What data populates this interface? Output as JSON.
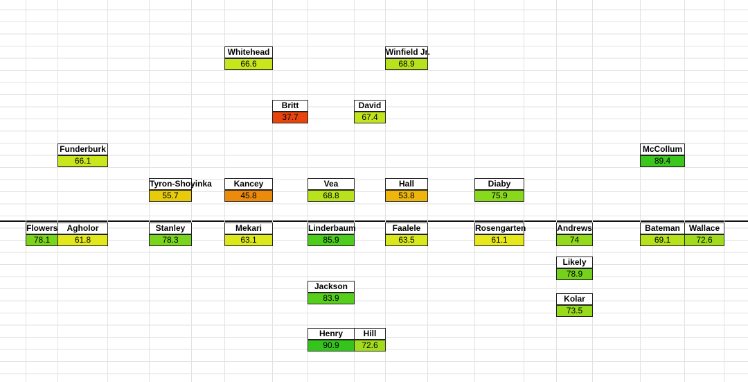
{
  "players": [
    {
      "name": "Whitehead",
      "rating": 66.6,
      "color": "#c8e61c"
    },
    {
      "name": "Winfield Jr.",
      "rating": 68.9,
      "color": "#b8e21c"
    },
    {
      "name": "Britt",
      "rating": 37.7,
      "color": "#e8440c"
    },
    {
      "name": "David",
      "rating": 67.4,
      "color": "#c2e41c"
    },
    {
      "name": "Funderburk",
      "rating": 66.1,
      "color": "#cae61c"
    },
    {
      "name": "McCollum",
      "rating": 89.4,
      "color": "#3cc71c"
    },
    {
      "name": "Tyron-Shoyinka",
      "rating": 55.7,
      "color": "#e8cc0c"
    },
    {
      "name": "Kancey",
      "rating": 45.8,
      "color": "#ec8a0c"
    },
    {
      "name": "Vea",
      "rating": 68.8,
      "color": "#b8e21c"
    },
    {
      "name": "Hall",
      "rating": 53.8,
      "color": "#eeb60c"
    },
    {
      "name": "Diaby",
      "rating": 75.9,
      "color": "#88d81c"
    },
    {
      "name": "Flowers",
      "rating": 78.1,
      "color": "#7ad41c"
    },
    {
      "name": "Agholor",
      "rating": 61.8,
      "color": "#e2e81c"
    },
    {
      "name": "Stanley",
      "rating": 78.3,
      "color": "#78d41c"
    },
    {
      "name": "Mekari",
      "rating": 63.1,
      "color": "#dae81c"
    },
    {
      "name": "Linderbaum",
      "rating": 85.9,
      "color": "#4ccc1c"
    },
    {
      "name": "Faalele",
      "rating": 63.5,
      "color": "#d8e81c"
    },
    {
      "name": "Rosengarten",
      "rating": 61.1,
      "color": "#e6e81c"
    },
    {
      "name": "Andrews",
      "rating": 74,
      "color": "#94da1c"
    },
    {
      "name": "Bateman",
      "rating": 69.1,
      "color": "#b6e21c"
    },
    {
      "name": "Wallace",
      "rating": 72.6,
      "color": "#a0dc1c"
    },
    {
      "name": "Likely",
      "rating": 78.9,
      "color": "#74d21c"
    },
    {
      "name": "Kolar",
      "rating": 73.5,
      "color": "#98da1c"
    },
    {
      "name": "Jackson",
      "rating": 83.9,
      "color": "#56ce1c"
    },
    {
      "name": "Henry",
      "rating": 90.9,
      "color": "#34c41c"
    },
    {
      "name": "Hill",
      "rating": 72.6,
      "color": "#a0dc1c"
    }
  ]
}
